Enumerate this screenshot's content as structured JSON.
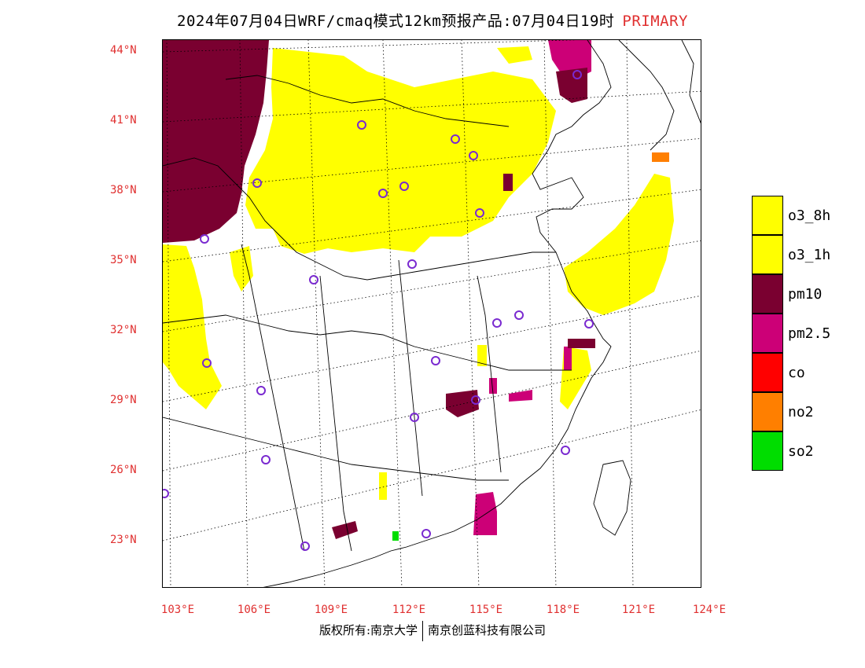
{
  "title": {
    "main": "2024年07月04日WRF/cmaq模式12km预报产品:07月04日19时",
    "tag": "PRIMARY"
  },
  "map": {
    "lat_labels": [
      "44°N",
      "41°N",
      "38°N",
      "35°N",
      "32°N",
      "29°N",
      "26°N",
      "23°N"
    ],
    "lon_labels": [
      "103°E",
      "106°E",
      "109°E",
      "112°E",
      "115°E",
      "118°E",
      "121°E",
      "124°E"
    ]
  },
  "legend": [
    {
      "label": "o3_8h",
      "color": "#ffff00"
    },
    {
      "label": "o3_1h",
      "color": "#ffff00"
    },
    {
      "label": "pm10",
      "color": "#7a0030"
    },
    {
      "label": "pm2.5",
      "color": "#cc0077"
    },
    {
      "label": "co",
      "color": "#ff0000"
    },
    {
      "label": "no2",
      "color": "#ff7f00"
    },
    {
      "label": "so2",
      "color": "#00dd00"
    }
  ],
  "copyright": {
    "left": "版权所有:南京大学",
    "right": "南京创蓝科技有限公司"
  },
  "colors": {
    "label_red": "#e03030",
    "station_ring": "#7a2ad0"
  }
}
